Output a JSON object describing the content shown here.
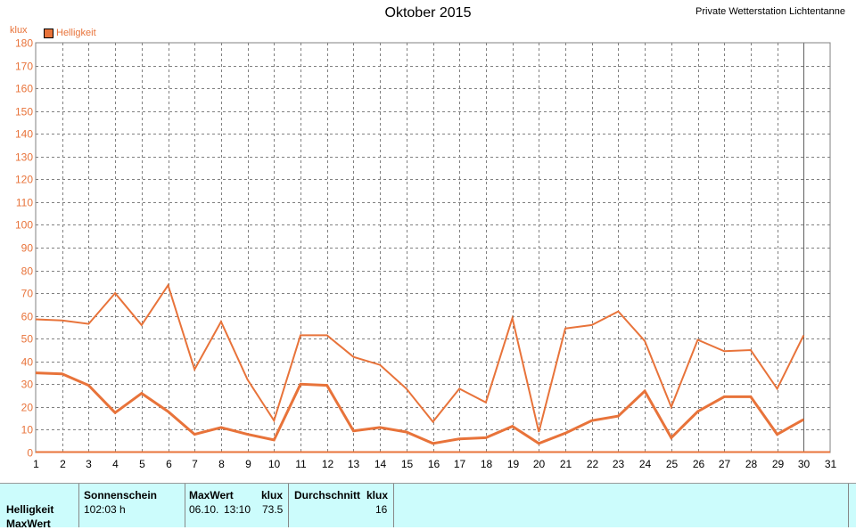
{
  "header": {
    "title": "Oktober 2015",
    "station": "Private Wetterstation Lichtentanne",
    "unit": "klux",
    "legend_label": "Helligkeit"
  },
  "chart_data": {
    "type": "line",
    "title": "Oktober 2015",
    "ylabel": "klux",
    "xlim": [
      1,
      31
    ],
    "ylim": [
      0,
      180
    ],
    "grid": true,
    "legend_position": "top-left",
    "color": "#e8733a",
    "y_ticks": [
      0,
      10,
      20,
      30,
      40,
      50,
      60,
      70,
      80,
      90,
      100,
      110,
      120,
      130,
      140,
      150,
      160,
      170,
      180
    ],
    "x_ticks": [
      1,
      2,
      3,
      4,
      5,
      6,
      7,
      8,
      9,
      10,
      11,
      12,
      13,
      14,
      15,
      16,
      17,
      18,
      19,
      20,
      21,
      22,
      23,
      24,
      25,
      26,
      27,
      28,
      29,
      30,
      31
    ],
    "x": [
      1,
      2,
      3,
      4,
      5,
      6,
      7,
      8,
      9,
      10,
      11,
      12,
      13,
      14,
      15,
      16,
      17,
      18,
      19,
      20,
      21,
      22,
      23,
      24,
      25,
      26,
      27,
      28,
      29,
      30
    ],
    "series": [
      {
        "name": "Helligkeit",
        "values": [
          58.5,
          58,
          56.5,
          70,
          56,
          73.5,
          36.5,
          57.5,
          32,
          14,
          51.5,
          51.5,
          42,
          38.5,
          28,
          13.5,
          28,
          22,
          59,
          9,
          54.5,
          56,
          62,
          49,
          20,
          49.5,
          44.5,
          45,
          28,
          51.5
        ]
      },
      {
        "name": "Durchschnitt",
        "values": [
          35,
          34.5,
          29.5,
          17.5,
          26,
          18,
          8,
          11,
          8,
          5.5,
          30,
          29.5,
          9.5,
          11,
          9,
          4,
          6,
          6.5,
          11.5,
          4,
          8.5,
          14,
          16,
          27,
          6.5,
          18,
          24.5,
          24.5,
          8,
          14.5
        ]
      }
    ]
  },
  "footer": {
    "row_label_1": "Helligkeit",
    "row_label_2": "MaxWert",
    "sun_header": "Sonnenschein",
    "sun_value": "102:03 h",
    "max_header": "MaxWert",
    "max_unit": "klux",
    "max_date": "06.10.",
    "max_time": "13:10",
    "max_value": "73.5",
    "avg_header": "Durchschnitt",
    "avg_unit": "klux",
    "avg_value": "16"
  }
}
